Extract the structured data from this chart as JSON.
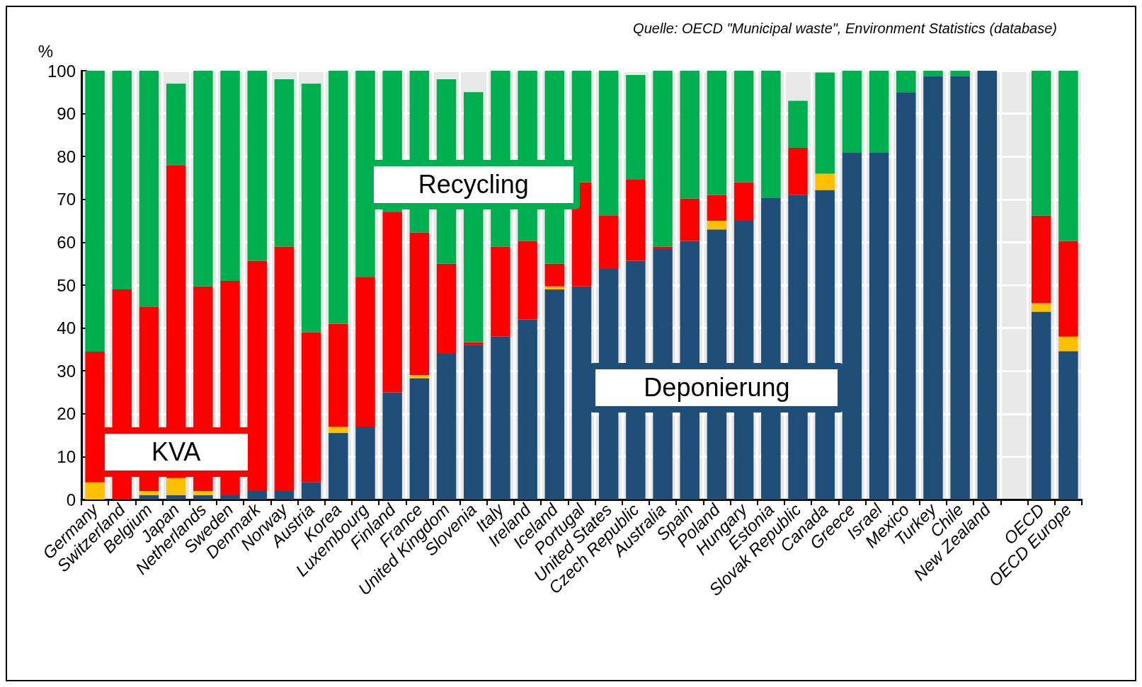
{
  "chart_data": {
    "type": "bar",
    "stacked": true,
    "ylabel": "%",
    "annotations": [
      "Quelle: OECD \"Municipal waste\", Environment Statistics (database)"
    ],
    "categories": [
      "Germany",
      "Switzerland",
      "Belgium",
      "Japan",
      "Netherlands",
      "Sweden",
      "Denmark",
      "Norway",
      "Austria",
      "Korea",
      "Luxembourg",
      "Finland",
      "France",
      "United Kingdom",
      "Slovenia",
      "Italy",
      "Ireland",
      "Iceland",
      "Portugal",
      "United States",
      "Czech Republic",
      "Australia",
      "Spain",
      "Poland",
      "Hungary",
      "Estonia",
      "Slovak Republic",
      "Canada",
      "Greece",
      "Israel",
      "Mexico",
      "Turkey",
      "Chile",
      "New Zealand",
      null,
      "OECD",
      "OECD Europe"
    ],
    "series": [
      {
        "name": "Deponierung",
        "color": "#1f4e79",
        "values": [
          0,
          0,
          1,
          1,
          1,
          1,
          2,
          2,
          4,
          15.5,
          17,
          25,
          28.3,
          34,
          36,
          38,
          42,
          49,
          49.7,
          53.8,
          55.7,
          58.4,
          60.3,
          63,
          65,
          70.3,
          71,
          72.2,
          81,
          81,
          95,
          98.7,
          98.7,
          100,
          null,
          43.8,
          34.6
        ]
      },
      {
        "color": "#ffc000",
        "values": [
          4,
          0,
          1,
          4,
          1,
          0,
          0,
          0,
          0,
          1.5,
          0,
          0,
          0.7,
          0,
          0,
          0,
          0,
          0.7,
          0,
          0,
          0,
          0,
          0,
          2,
          0,
          0,
          0,
          3.8,
          0,
          0,
          0,
          0,
          0,
          0,
          null,
          2,
          3.4
        ]
      },
      {
        "name": "KVA",
        "color": "#ff0000",
        "values": [
          30.5,
          49,
          43,
          73,
          47.7,
          50,
          53.7,
          57,
          35,
          24,
          34.8,
          42,
          33.3,
          21,
          0.7,
          21,
          18.3,
          5.3,
          24.3,
          12.5,
          19,
          0.6,
          9.9,
          6,
          9,
          0,
          11,
          0,
          0,
          0,
          0,
          0,
          0,
          0,
          null,
          20.4,
          22.3
        ]
      },
      {
        "name": "Recycling",
        "color": "#00b050",
        "values": [
          65.5,
          51,
          55,
          19,
          50.3,
          49,
          44.3,
          39,
          58,
          59,
          48.2,
          33,
          37.7,
          43,
          58.3,
          41,
          39.7,
          45,
          26,
          33.7,
          24.3,
          41,
          29.8,
          29,
          26,
          29.7,
          11,
          23.6,
          19,
          19,
          5,
          1.3,
          1.3,
          0,
          null,
          33.8,
          39.7
        ]
      }
    ],
    "ylim": [
      0,
      100
    ],
    "yticks": [
      0,
      10,
      20,
      30,
      40,
      50,
      60,
      70,
      80,
      90,
      100
    ],
    "grid": true,
    "legend": false
  }
}
